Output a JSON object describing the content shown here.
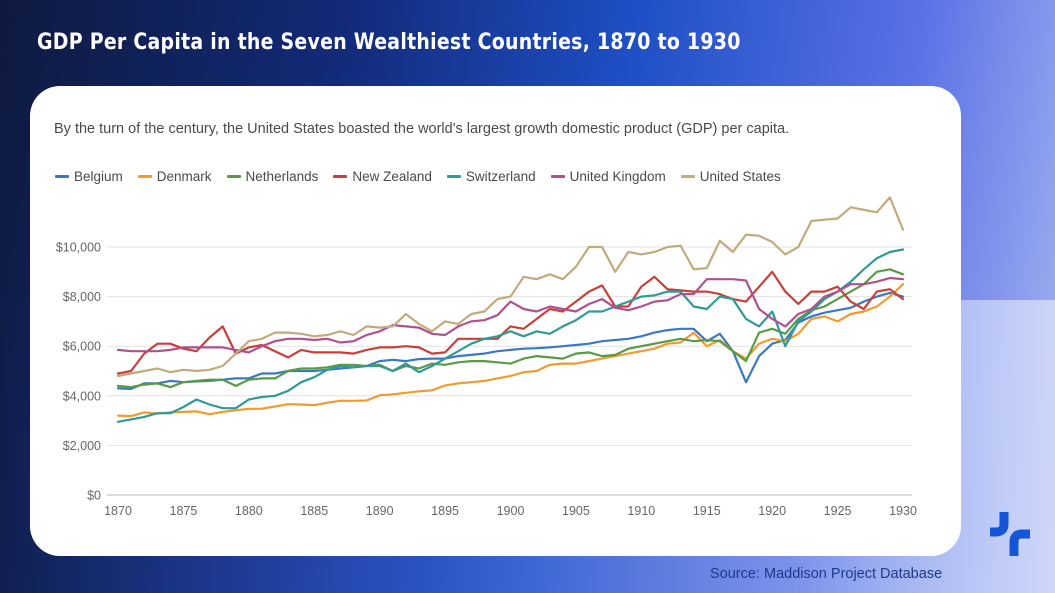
{
  "header": {
    "title": "GDP Per Capita in the Seven Wealthiest Countries, 1870 to 1930"
  },
  "card": {
    "subtitle": "By the turn of the century, the United States boasted the world's largest growth domestic product (GDP) per capita."
  },
  "footer": {
    "source": "Source: Maddison Project Database"
  },
  "logo": {
    "icon": "brand-logo-icon",
    "color": "#1456d6"
  },
  "chart_data": {
    "type": "line",
    "title": "GDP Per Capita in the Seven Wealthiest Countries, 1870 to 1930",
    "subtitle": "By the turn of the century, the United States boasted the world's largest growth domestic product (GDP) per capita.",
    "xlabel": "",
    "ylabel": "",
    "xlim": [
      1870,
      1930
    ],
    "ylim": [
      0,
      10000
    ],
    "x_ticks": [
      1870,
      1875,
      1880,
      1885,
      1890,
      1895,
      1900,
      1905,
      1910,
      1915,
      1920,
      1925,
      1930
    ],
    "x_tick_labels": [
      "1870",
      "1875",
      "1880",
      "1885",
      "1890",
      "1895",
      "1900",
      "1905",
      "1910",
      "1915",
      "1920",
      "1925",
      "1930"
    ],
    "y_ticks": [
      0,
      2000,
      4000,
      6000,
      8000,
      10000
    ],
    "y_tick_labels": [
      "$0",
      "$2,000",
      "$4,000",
      "$6,000",
      "$8,000",
      "$10,000"
    ],
    "grid": "horizontal",
    "legend_position": "top-left",
    "x": [
      1870,
      1871,
      1872,
      1873,
      1874,
      1875,
      1876,
      1877,
      1878,
      1879,
      1880,
      1881,
      1882,
      1883,
      1884,
      1885,
      1886,
      1887,
      1888,
      1889,
      1890,
      1891,
      1892,
      1893,
      1894,
      1895,
      1896,
      1897,
      1898,
      1899,
      1900,
      1901,
      1902,
      1903,
      1904,
      1905,
      1906,
      1907,
      1908,
      1909,
      1910,
      1911,
      1912,
      1913,
      1914,
      1915,
      1916,
      1917,
      1918,
      1919,
      1920,
      1921,
      1922,
      1923,
      1924,
      1925,
      1926,
      1927,
      1928,
      1929,
      1930
    ],
    "series": [
      {
        "name": "Belgium",
        "color": "#3a78c4",
        "values": [
          4300,
          4280,
          4500,
          4500,
          4600,
          4550,
          4580,
          4600,
          4650,
          4700,
          4700,
          4900,
          4900,
          5000,
          5000,
          5000,
          5050,
          5100,
          5150,
          5200,
          5400,
          5450,
          5400,
          5480,
          5500,
          5500,
          5600,
          5650,
          5700,
          5800,
          5850,
          5900,
          5920,
          5950,
          6000,
          6050,
          6100,
          6200,
          6250,
          6300,
          6400,
          6550,
          6650,
          6700,
          6700,
          6200,
          6500,
          5800,
          4550,
          5600,
          6100,
          6250,
          6950,
          7200,
          7350,
          7450,
          7550,
          7800,
          8000,
          8150,
          8000
        ]
      },
      {
        "name": "Denmark",
        "color": "#f09a30",
        "values": [
          3200,
          3180,
          3330,
          3280,
          3330,
          3350,
          3370,
          3260,
          3350,
          3420,
          3470,
          3480,
          3570,
          3660,
          3650,
          3620,
          3720,
          3800,
          3800,
          3810,
          4020,
          4060,
          4120,
          4180,
          4220,
          4420,
          4500,
          4550,
          4600,
          4700,
          4800,
          4950,
          5000,
          5250,
          5300,
          5300,
          5400,
          5500,
          5600,
          5700,
          5800,
          5900,
          6100,
          6150,
          6550,
          6000,
          6250,
          5800,
          5500,
          6100,
          6300,
          6200,
          6500,
          7100,
          7200,
          7000,
          7300,
          7400,
          7600,
          8000,
          8500
        ]
      },
      {
        "name": "Netherlands",
        "color": "#5a9a45",
        "values": [
          4400,
          4350,
          4450,
          4500,
          4350,
          4550,
          4600,
          4650,
          4650,
          4400,
          4650,
          4700,
          4700,
          5000,
          5100,
          5100,
          5150,
          5250,
          5250,
          5200,
          5250,
          5000,
          5200,
          5100,
          5300,
          5250,
          5350,
          5400,
          5400,
          5350,
          5300,
          5500,
          5600,
          5550,
          5500,
          5700,
          5750,
          5600,
          5650,
          5900,
          6000,
          6100,
          6200,
          6300,
          6200,
          6250,
          6200,
          5800,
          5400,
          6550,
          6700,
          6500,
          7100,
          7450,
          7600,
          7900,
          8200,
          8500,
          9000,
          9100,
          8900
        ]
      },
      {
        "name": "New Zealand",
        "color": "#c8403a",
        "values": [
          4900,
          5000,
          5700,
          6100,
          6100,
          5900,
          5800,
          6350,
          6800,
          5700,
          5950,
          6050,
          5800,
          5550,
          5850,
          5750,
          5750,
          5750,
          5700,
          5850,
          5950,
          5950,
          6000,
          5950,
          5700,
          5750,
          6300,
          6300,
          6300,
          6300,
          6800,
          6700,
          7100,
          7500,
          7400,
          7800,
          8200,
          8450,
          7600,
          7600,
          8400,
          8800,
          8300,
          8250,
          8200,
          8200,
          8100,
          7900,
          7800,
          8400,
          9000,
          8200,
          7700,
          8200,
          8200,
          8400,
          7800,
          7500,
          8200,
          8300,
          7900
        ]
      },
      {
        "name": "Switzerland",
        "color": "#2f9a98",
        "values": [
          2950,
          3050,
          3150,
          3300,
          3300,
          3550,
          3850,
          3650,
          3500,
          3500,
          3850,
          3950,
          4000,
          4200,
          4550,
          4750,
          5050,
          5200,
          5150,
          5200,
          5200,
          5000,
          5300,
          4950,
          5200,
          5500,
          5800,
          6100,
          6300,
          6400,
          6600,
          6400,
          6600,
          6500,
          6800,
          7050,
          7400,
          7400,
          7600,
          7800,
          8000,
          8050,
          8200,
          8200,
          7600,
          7500,
          8000,
          7900,
          7100,
          6800,
          7400,
          6000,
          7000,
          7400,
          7900,
          8200,
          8600,
          9100,
          9550,
          9800,
          9900
        ]
      },
      {
        "name": "United Kingdom",
        "color": "#b0508e",
        "values": [
          5850,
          5800,
          5800,
          5800,
          5850,
          5950,
          5950,
          5950,
          5950,
          5850,
          5750,
          6000,
          6200,
          6300,
          6300,
          6250,
          6300,
          6150,
          6200,
          6450,
          6600,
          6850,
          6800,
          6750,
          6500,
          6450,
          6800,
          7000,
          7050,
          7250,
          7800,
          7500,
          7400,
          7600,
          7500,
          7400,
          7700,
          7900,
          7550,
          7450,
          7600,
          7800,
          7850,
          8100,
          8100,
          8700,
          8700,
          8700,
          8650,
          7500,
          7100,
          6800,
          7300,
          7500,
          8000,
          8200,
          8500,
          8500,
          8600,
          8750,
          8700
        ]
      },
      {
        "name": "United States",
        "color": "#c3aa7c",
        "values": [
          4800,
          4900,
          5000,
          5100,
          4950,
          5050,
          5000,
          5050,
          5200,
          5700,
          6200,
          6300,
          6550,
          6550,
          6500,
          6400,
          6450,
          6600,
          6450,
          6800,
          6750,
          6800,
          7300,
          6900,
          6600,
          7000,
          6900,
          7300,
          7400,
          7900,
          8000,
          8800,
          8700,
          8900,
          8700,
          9200,
          10000,
          10000,
          9000,
          9800,
          9700,
          9800,
          10000,
          10050,
          9100,
          9150,
          10250,
          9800,
          10500,
          10450,
          10200,
          9700,
          10000,
          11050,
          11100,
          11150,
          11600,
          11500,
          11400,
          12000,
          10700
        ]
      }
    ]
  }
}
